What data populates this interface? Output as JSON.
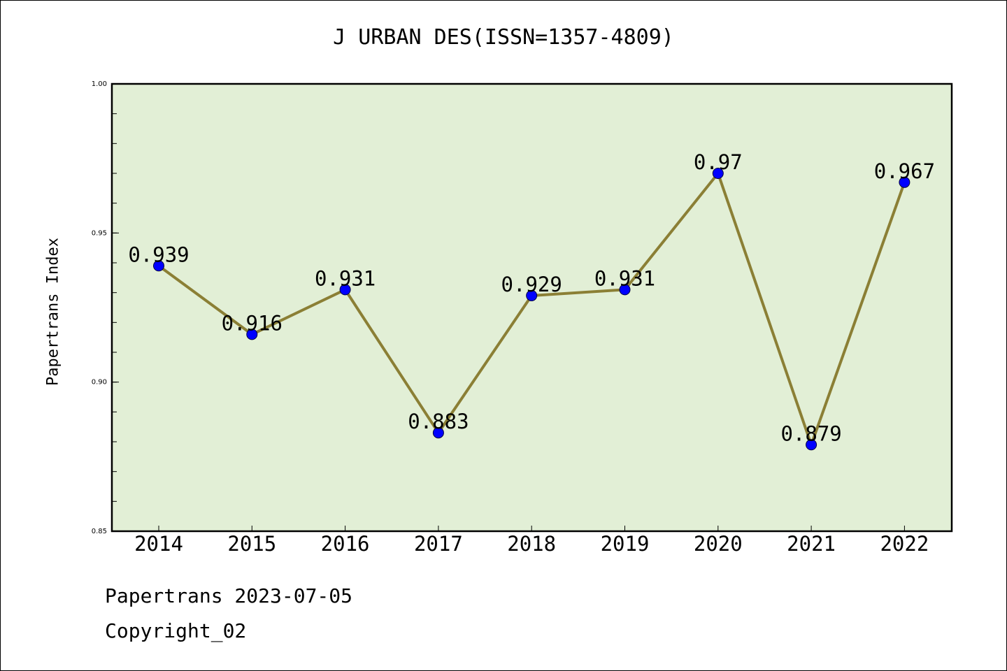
{
  "chart_data": {
    "type": "line",
    "title": "J URBAN DES(ISSN=1357-4809)",
    "xlabel": "",
    "ylabel": "Papertrans Index",
    "categories": [
      "2014",
      "2015",
      "2016",
      "2017",
      "2018",
      "2019",
      "2020",
      "2021",
      "2022"
    ],
    "values": [
      0.939,
      0.916,
      0.931,
      0.883,
      0.929,
      0.931,
      0.97,
      0.879,
      0.967
    ],
    "data_labels": [
      "0.939",
      "0.916",
      "0.931",
      "0.883",
      "0.929",
      "0.931",
      "0.97",
      "0.879",
      "0.967"
    ],
    "ylim": [
      0.85,
      1.0
    ],
    "yticks": [
      "0.85",
      "0.90",
      "0.95",
      "1.00"
    ],
    "y_minor_step": 0.01,
    "grid": false,
    "colors": {
      "plot_background": "#e2efd6",
      "line": "#8b7f35",
      "marker": "#0000ff"
    }
  },
  "footer": {
    "date_text": "Papertrans 2023-07-05",
    "copyright_text": "Copyright_02"
  }
}
